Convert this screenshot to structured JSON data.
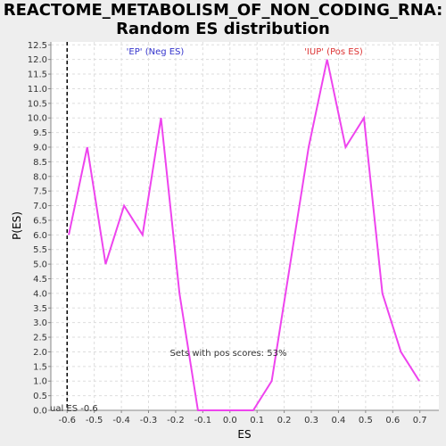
{
  "chart_data": {
    "type": "line",
    "title_line1": "REACTOME_METABOLISM_OF_NON_CODING_RNA:",
    "title_line2": "Random ES distribution",
    "xlabel": "ES",
    "ylabel": "P(ES)",
    "xlim": [
      -0.66,
      0.77
    ],
    "ylim": [
      0,
      12.6
    ],
    "xticks": [
      "-0.6",
      "-0.5",
      "-0.4",
      "-0.3",
      "-0.2",
      "-0.1",
      "0.0",
      "0.1",
      "0.2",
      "0.3",
      "0.4",
      "0.5",
      "0.6",
      "0.7"
    ],
    "yticks": [
      "0.0",
      "0.5",
      "1.0",
      "1.5",
      "2.0",
      "2.5",
      "3.0",
      "3.5",
      "4.0",
      "4.5",
      "5.0",
      "5.5",
      "6.0",
      "6.5",
      "7.0",
      "7.5",
      "8.0",
      "8.5",
      "9.0",
      "9.5",
      "10.0",
      "10.5",
      "11.0",
      "11.5",
      "12.0",
      "12.5"
    ],
    "grid": true,
    "series": [
      {
        "color": "#ee44ee",
        "x": [
          -0.594,
          -0.526,
          -0.458,
          -0.39,
          -0.322,
          -0.254,
          -0.186,
          -0.118,
          -0.05,
          0.018,
          0.086,
          0.154,
          0.222,
          0.29,
          0.358,
          0.426,
          0.494,
          0.562,
          0.63,
          0.698
        ],
        "y": [
          6,
          9,
          5,
          7,
          6,
          10,
          4,
          0,
          0,
          0,
          0,
          1,
          5,
          9,
          12,
          9,
          10,
          4,
          2,
          1
        ]
      }
    ],
    "actual_es": -0.6,
    "actual_es_label": "ual ES -0.6",
    "neg_label": "'EP' (Neg ES)",
    "pos_label": "'IUP' (Pos ES)",
    "pos_scores_label": "Sets with pos scores: 53%",
    "neg_color": "#3333cc",
    "pos_color": "#dd3333"
  }
}
